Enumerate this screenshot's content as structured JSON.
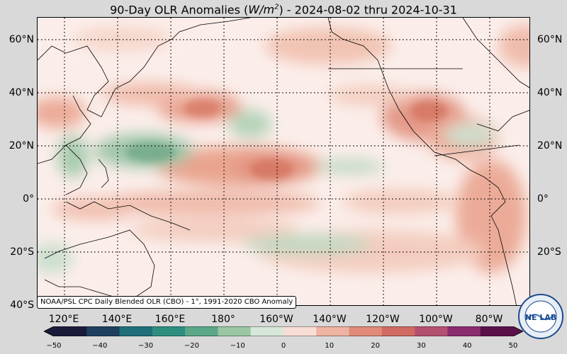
{
  "title": {
    "prefix": "90-Day OLR Anomalies (",
    "unit_base": "W/m",
    "unit_exp": "2",
    "suffix": ") - 2024-08-02 thru 2024-10-31"
  },
  "latitude_labels": [
    "60°N",
    "40°N",
    "20°N",
    "0°",
    "20°S",
    "40°S"
  ],
  "longitude_labels": [
    "120°E",
    "140°E",
    "160°E",
    "180°",
    "160°W",
    "140°W",
    "120°W",
    "100°W",
    "80°W"
  ],
  "credit": "NOAA/PSL CPC Daily Blended OLR (CBO) - 1°, 1991-2020 CBO Anomaly",
  "colorbar": {
    "ticks": [
      "−50",
      "−40",
      "−30",
      "−20",
      "−10",
      "0",
      "10",
      "20",
      "30",
      "40",
      "50"
    ],
    "min": -50,
    "max": 50,
    "negative_colors": [
      "#1a1a3a",
      "#1f3f5e",
      "#1f6e7a",
      "#2e8f80",
      "#5ba888",
      "#9ac6a4",
      "#d7e8da"
    ],
    "positive_colors": [
      "#f7ddd5",
      "#eeb3a1",
      "#e08a77",
      "#d06a63",
      "#b45070",
      "#8b2d6e",
      "#5a1048"
    ]
  },
  "logo": {
    "text": "NE LAB",
    "ring_text": "NOAA PHYSICAL SCIENCES LABORATORY"
  },
  "colors": {
    "map_background": "#fbeeea",
    "positive_anomaly": "#d9836f",
    "negative_anomaly": "#6fa886",
    "grid": "#000000"
  }
}
